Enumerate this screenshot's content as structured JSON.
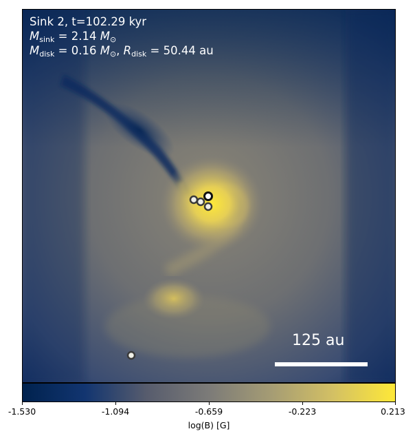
{
  "annotation": {
    "line1": "Sink 2, t=102.29 kyr",
    "msink_label": "M",
    "msink_sub": "sink",
    "msink_value": " = 2.14 ",
    "mdisk_label": "M",
    "mdisk_sub": "disk",
    "mdisk_value": " = 0.16 ",
    "rdisk_label": "R",
    "rdisk_sub": "disk",
    "rdisk_value": " = 50.44 au",
    "msun_symbol": "M",
    "msun_sub": "⊙"
  },
  "scale_bar": {
    "label": "125 au"
  },
  "colorbar": {
    "label": "log(B) [G]",
    "ticks": [
      "-1.530",
      "-1.094",
      "-0.659",
      "-0.223",
      "0.213"
    ],
    "colors": [
      "#00224e",
      "#123570",
      "#575c6d",
      "#7c7b78",
      "#a59c74",
      "#d3c064",
      "#fee838"
    ]
  },
  "colors": {
    "background_low": "#00224e",
    "background_mid": "#7c7b78",
    "background_high": "#fee838",
    "sink_marker_edge": "#3a3a3a",
    "sink_marker_fill": "#ffffff"
  }
}
